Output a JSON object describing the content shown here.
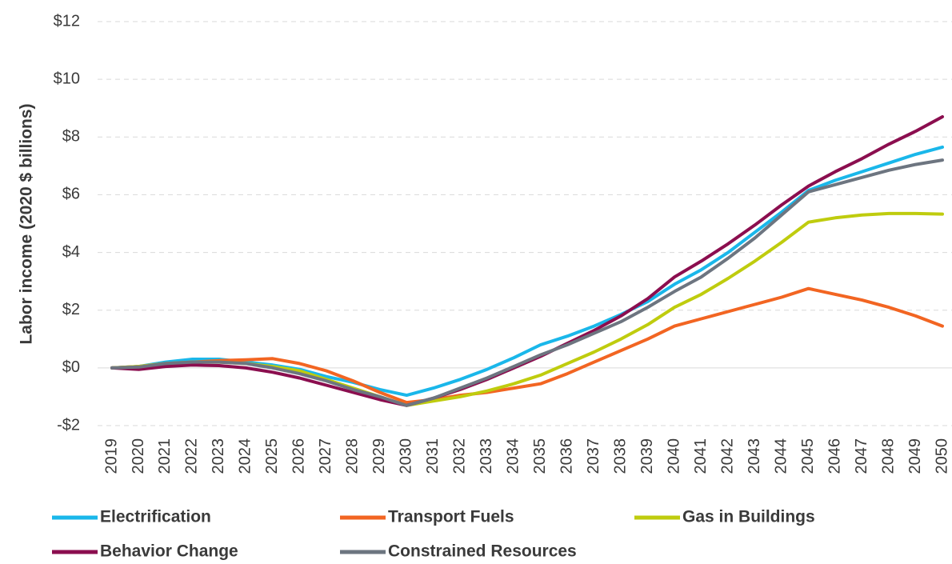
{
  "chart_data": {
    "type": "line",
    "ylabel": "Labor income (2020 $ billions)",
    "categories": [
      "2019",
      "2020",
      "2021",
      "2022",
      "2023",
      "2024",
      "2025",
      "2026",
      "2027",
      "2028",
      "2029",
      "2030",
      "2031",
      "2032",
      "2033",
      "2034",
      "2035",
      "2036",
      "2037",
      "2038",
      "2039",
      "2040",
      "2041",
      "2042",
      "2043",
      "2044",
      "2045",
      "2046",
      "2047",
      "2048",
      "2049",
      "2050"
    ],
    "series": [
      {
        "name": "Electrification",
        "color": "#1ab7ea",
        "values": [
          0,
          0.05,
          0.2,
          0.3,
          0.3,
          0.2,
          0.1,
          -0.05,
          -0.3,
          -0.5,
          -0.75,
          -0.95,
          -0.7,
          -0.4,
          -0.05,
          0.35,
          0.8,
          1.1,
          1.45,
          1.85,
          2.3,
          2.9,
          3.4,
          4.0,
          4.7,
          5.4,
          6.15,
          6.5,
          6.8,
          7.1,
          7.4,
          7.65
        ]
      },
      {
        "name": "Transport Fuels",
        "color": "#f26522",
        "values": [
          0,
          0.05,
          0.15,
          0.2,
          0.25,
          0.28,
          0.32,
          0.15,
          -0.1,
          -0.45,
          -0.85,
          -1.2,
          -1.1,
          -0.95,
          -0.85,
          -0.7,
          -0.55,
          -0.2,
          0.2,
          0.6,
          1.0,
          1.45,
          1.7,
          1.95,
          2.2,
          2.45,
          2.75,
          2.55,
          2.35,
          2.1,
          1.8,
          1.45
        ]
      },
      {
        "name": "Gas in Buildings",
        "color": "#bfcc0e",
        "values": [
          0,
          0.05,
          0.15,
          0.2,
          0.2,
          0.15,
          0.05,
          -0.1,
          -0.4,
          -0.7,
          -1.0,
          -1.3,
          -1.15,
          -1.0,
          -0.8,
          -0.55,
          -0.25,
          0.15,
          0.55,
          1.0,
          1.5,
          2.1,
          2.55,
          3.1,
          3.7,
          4.35,
          5.05,
          5.2,
          5.3,
          5.35,
          5.35,
          5.33
        ]
      },
      {
        "name": "Behavior Change",
        "color": "#8b0e4f",
        "values": [
          0,
          -0.05,
          0.05,
          0.1,
          0.08,
          0.0,
          -0.15,
          -0.35,
          -0.6,
          -0.85,
          -1.1,
          -1.3,
          -1.05,
          -0.75,
          -0.4,
          0.0,
          0.4,
          0.85,
          1.3,
          1.8,
          2.4,
          3.15,
          3.7,
          4.3,
          4.95,
          5.65,
          6.3,
          6.8,
          7.25,
          7.75,
          8.2,
          8.7
        ]
      },
      {
        "name": "Constrained Resources",
        "color": "#6d7580",
        "values": [
          0,
          0.03,
          0.15,
          0.2,
          0.2,
          0.15,
          0.0,
          -0.2,
          -0.45,
          -0.75,
          -1.0,
          -1.3,
          -1.05,
          -0.7,
          -0.35,
          0.05,
          0.45,
          0.8,
          1.2,
          1.6,
          2.1,
          2.65,
          3.15,
          3.8,
          4.5,
          5.3,
          6.1,
          6.35,
          6.6,
          6.85,
          7.05,
          7.2
        ]
      }
    ],
    "ylim": [
      -2,
      12
    ],
    "yticks": [
      {
        "value": -2,
        "label": "-$2"
      },
      {
        "value": 0,
        "label": "$0"
      },
      {
        "value": 2,
        "label": "$2"
      },
      {
        "value": 4,
        "label": "$4"
      },
      {
        "value": 6,
        "label": "$6"
      },
      {
        "value": 8,
        "label": "$8"
      },
      {
        "value": 10,
        "label": "$10"
      },
      {
        "value": 12,
        "label": "$12"
      }
    ],
    "grid": true
  }
}
